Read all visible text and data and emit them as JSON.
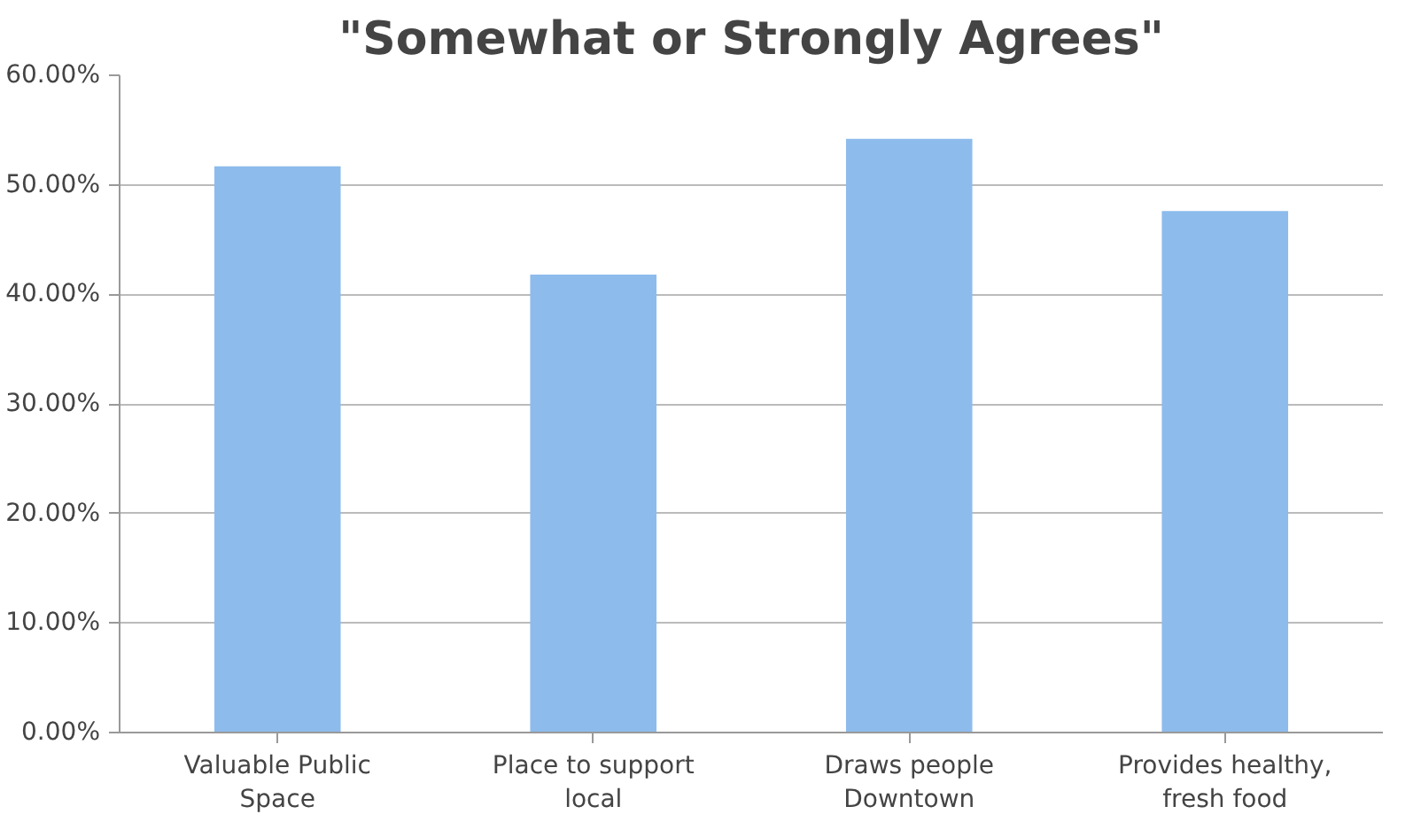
{
  "chart_data": {
    "type": "bar",
    "title": "\"Somewhat or Strongly Agrees\"",
    "categories": [
      "Valuable Public\nSpace",
      "Place to support\nlocal",
      "Draws people\nDowntown",
      "Provides healthy,\nfresh food"
    ],
    "values": [
      51.7,
      41.8,
      54.2,
      47.6
    ],
    "color": "#8dbbec",
    "ylim": [
      0,
      60
    ],
    "yticks": [
      {
        "value": 0,
        "label": "0.00%"
      },
      {
        "value": 10,
        "label": "10.00%"
      },
      {
        "value": 20,
        "label": "20.00%"
      },
      {
        "value": 30,
        "label": "30.00%"
      },
      {
        "value": 40,
        "label": "40.00%"
      },
      {
        "value": 50,
        "label": "50.00%"
      },
      {
        "value": 60,
        "label": "60.00%"
      }
    ],
    "grid": "y"
  }
}
